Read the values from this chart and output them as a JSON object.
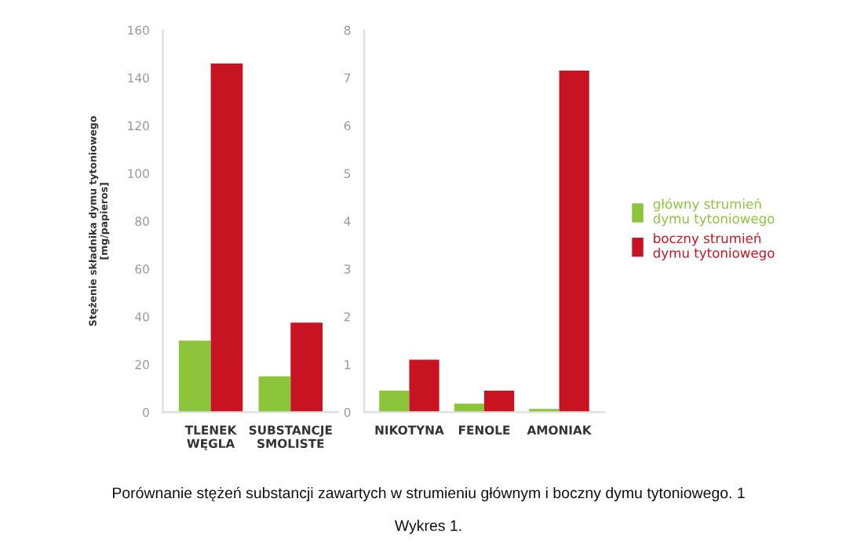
{
  "chart_data": [
    {
      "type": "bar",
      "categories": [
        "TLENEK\nWĘGLA",
        "SUBSTANCJE\nSMOLISTE"
      ],
      "ylabel": "Stężenie składnika dymu tytoniowego\n[mg/papieros]",
      "ylim": [
        0,
        160
      ],
      "yticks": [
        0,
        20,
        40,
        60,
        80,
        100,
        120,
        140,
        160
      ],
      "grid": false,
      "legend": "right",
      "series": [
        {
          "name": "główny strumień\ndymu tytoniowego",
          "color": "#8cc43c",
          "values": [
            30,
            15
          ]
        },
        {
          "name": "boczny strumień\ndymu tytoniowego",
          "color": "#c81422",
          "values": [
            146,
            37.5
          ]
        }
      ],
      "annotations": [
        "Porównanie stężeń substancji zawartych w strumieniu głównym i boczny dymu tytoniowego. 1",
        "Wykres 1."
      ]
    },
    {
      "type": "bar",
      "categories": [
        "NIKOTYNA",
        "FENOLE",
        "AMONIAK"
      ],
      "ylim": [
        0,
        8
      ],
      "yticks": [
        0,
        1,
        2,
        3,
        4,
        5,
        6,
        7,
        8
      ],
      "grid": false,
      "series": [
        {
          "color": "#8cc43c",
          "values": [
            0.45,
            0.18,
            0.07
          ]
        },
        {
          "color": "#c81422",
          "values": [
            1.1,
            0.45,
            7.15
          ]
        }
      ]
    }
  ]
}
